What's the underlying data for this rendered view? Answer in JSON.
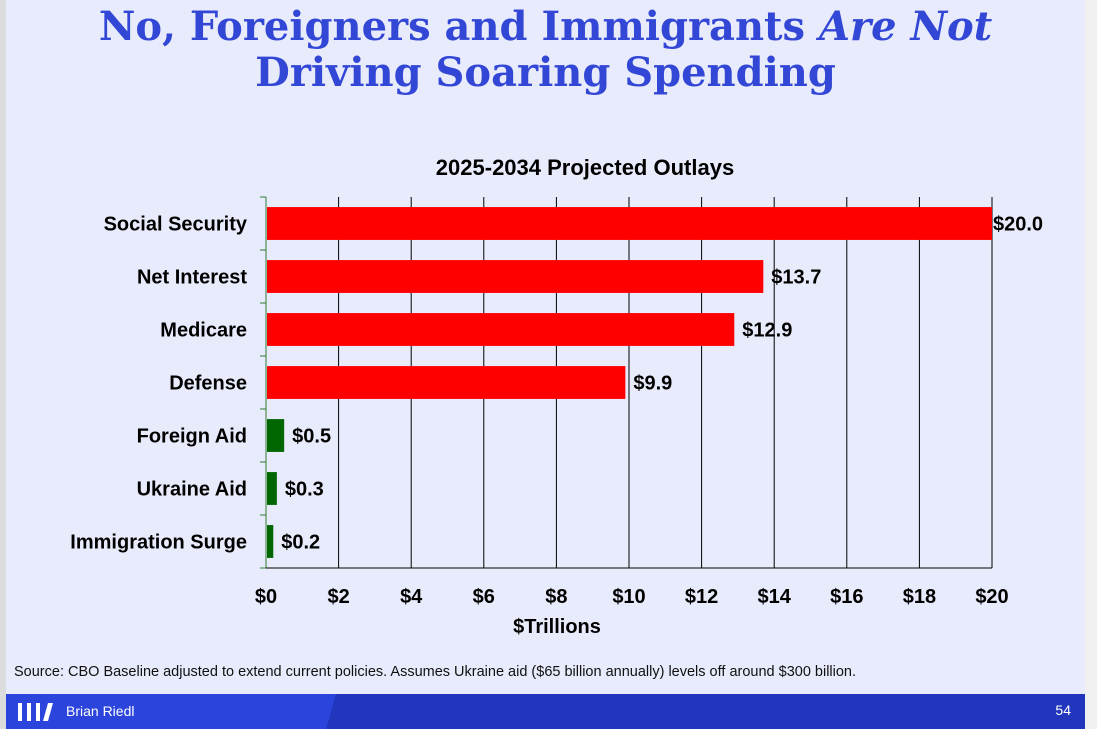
{
  "slide": {
    "title_line1_plain": "No, Foreigners and Immigrants ",
    "title_line1_italic": "Are Not",
    "title_line2": "Driving Soaring Spending",
    "source": "Source: CBO Baseline adjusted to extend current policies. Assumes Ukraine aid ($65 billion annually) levels off around $300 billion.",
    "author": "Brian Riedl",
    "page_number": "54"
  },
  "colors": {
    "title": "#3347d6",
    "red_bar": "#ff0000",
    "green_bar": "#006600",
    "footer": "#2236bd"
  },
  "chart_data": {
    "type": "bar",
    "orientation": "horizontal",
    "title": "2025-2034 Projected Outlays",
    "xlabel": "$Trillions",
    "ylabel": "",
    "xlim": [
      0,
      20
    ],
    "x_ticks": [
      0,
      2,
      4,
      6,
      8,
      10,
      12,
      14,
      16,
      18,
      20
    ],
    "x_tick_labels": [
      "$0",
      "$2",
      "$4",
      "$6",
      "$8",
      "$10",
      "$12",
      "$14",
      "$16",
      "$18",
      "$20"
    ],
    "grid": "vertical",
    "categories": [
      "Social Security",
      "Net Interest",
      "Medicare",
      "Defense",
      "Foreign Aid",
      "Ukraine Aid",
      "Immigration Surge"
    ],
    "values": [
      20.0,
      13.7,
      12.9,
      9.9,
      0.5,
      0.3,
      0.2
    ],
    "data_labels": [
      "$20.0",
      "$13.7",
      "$12.9",
      "$9.9",
      "$0.5",
      "$0.3",
      "$0.2"
    ],
    "bar_colors": [
      "#ff0000",
      "#ff0000",
      "#ff0000",
      "#ff0000",
      "#006600",
      "#006600",
      "#006600"
    ]
  }
}
